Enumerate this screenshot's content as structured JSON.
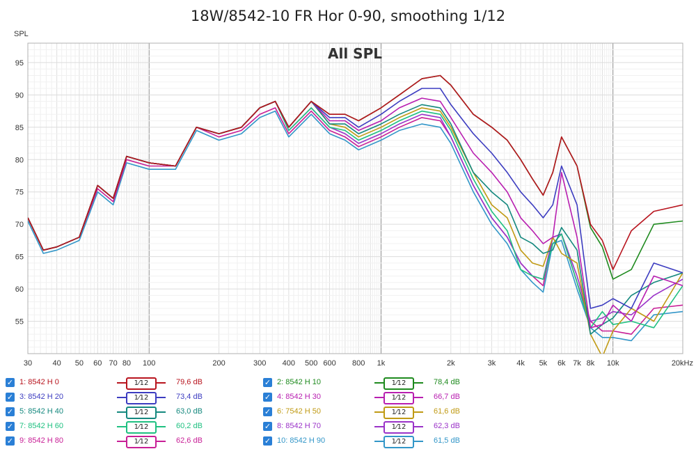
{
  "title": "18W/8542-10 FR Hor 0-90, smoothing 1/12",
  "panel_label": "All SPL",
  "chart_data": {
    "type": "line",
    "title": "18W/8542-10 FR Hor 0-90, smoothing 1/12",
    "ylabel": "SPL",
    "xlabel": "",
    "xscale": "log",
    "xlim": [
      30,
      20000
    ],
    "ylim": [
      50,
      98
    ],
    "grid": true,
    "x_tick_labels": [
      {
        "v": 30,
        "t": "30"
      },
      {
        "v": 40,
        "t": "40"
      },
      {
        "v": 50,
        "t": "50"
      },
      {
        "v": 60,
        "t": "60"
      },
      {
        "v": 70,
        "t": "70"
      },
      {
        "v": 80,
        "t": "80"
      },
      {
        "v": 100,
        "t": "100"
      },
      {
        "v": 200,
        "t": "200"
      },
      {
        "v": 300,
        "t": "300"
      },
      {
        "v": 400,
        "t": "400"
      },
      {
        "v": 500,
        "t": "500"
      },
      {
        "v": 600,
        "t": "600"
      },
      {
        "v": 800,
        "t": "800"
      },
      {
        "v": 1000,
        "t": "1k"
      },
      {
        "v": 2000,
        "t": "2k"
      },
      {
        "v": 3000,
        "t": "3k"
      },
      {
        "v": 4000,
        "t": "4k"
      },
      {
        "v": 5000,
        "t": "5k"
      },
      {
        "v": 6000,
        "t": "6k"
      },
      {
        "v": 7000,
        "t": "7k"
      },
      {
        "v": 8000,
        "t": "8k"
      },
      {
        "v": 10000,
        "t": "10k"
      },
      {
        "v": 20000,
        "t": "20kHz"
      }
    ],
    "y_ticks": [
      55,
      60,
      65,
      70,
      75,
      80,
      85,
      90,
      95
    ],
    "x": [
      30,
      35,
      40,
      50,
      60,
      70,
      80,
      100,
      130,
      160,
      200,
      250,
      300,
      350,
      400,
      500,
      600,
      700,
      800,
      1000,
      1200,
      1500,
      1800,
      2000,
      2500,
      3000,
      3500,
      4000,
      4500,
      5000,
      5500,
      6000,
      7000,
      8000,
      9000,
      10000,
      12000,
      15000,
      20000
    ],
    "base": [
      71,
      66,
      66.5,
      68,
      76,
      74,
      80.5,
      79.5,
      79,
      85,
      84,
      85,
      88,
      89,
      85,
      89,
      87,
      87,
      86,
      88,
      90,
      92.5,
      93,
      91.5,
      87,
      85,
      83,
      80,
      77,
      74.5,
      78,
      83.5,
      79,
      70,
      67.5,
      66.5,
      67,
      70,
      71.5
    ],
    "series": [
      {
        "name": "1: 8542 H 0",
        "color": "#b8141e",
        "offsets": [
          0,
          0,
          0,
          0,
          0,
          0,
          0,
          0,
          0,
          0,
          0,
          0,
          0,
          0,
          0,
          0,
          0,
          0,
          0,
          0,
          0,
          0,
          0,
          0,
          0,
          0,
          0,
          0,
          0,
          0,
          0,
          0,
          0,
          0,
          0,
          -3.5,
          2,
          2,
          1.5
        ]
      },
      {
        "name": "2: 8542 H 10",
        "color": "#1e8a1e",
        "offsets": [
          0,
          0,
          0,
          0,
          0,
          0,
          0,
          0,
          0,
          0,
          0,
          0,
          0,
          0,
          0,
          0,
          0,
          0,
          0,
          0,
          0,
          0,
          0,
          0,
          0,
          0,
          0,
          0,
          0,
          0,
          0,
          0,
          0,
          -0.5,
          -1,
          -5,
          -4,
          0,
          -1
        ]
      },
      {
        "name": "3: 8542 H 20",
        "color": "#3c3cc0",
        "offsets": [
          0,
          0,
          0,
          0,
          0,
          0,
          0,
          0,
          0,
          0,
          0,
          0,
          0,
          0,
          0,
          0,
          -0.5,
          -0.5,
          -1,
          -1,
          -1,
          -1.5,
          -2,
          -3,
          -3,
          -4,
          -5,
          -5,
          -4,
          -3.5,
          -5,
          -4.5,
          -6,
          -13,
          -10,
          -8,
          -10,
          -6,
          -9
        ]
      },
      {
        "name": "4: 8542 H 30",
        "color": "#b81eb0",
        "offsets": [
          0,
          0,
          0,
          0,
          0,
          0,
          0,
          0,
          0,
          0,
          0,
          0,
          0,
          0,
          0,
          0,
          -1,
          -1,
          -1.5,
          -2,
          -2,
          -3,
          -4,
          -5,
          -6,
          -7,
          -8,
          -9,
          -8,
          -7.5,
          -10,
          -5.5,
          -11,
          -16,
          -13,
          -9,
          -12,
          -8,
          -11
        ]
      },
      {
        "name": "5: 8542 H 40",
        "color": "#14887e",
        "offsets": [
          0,
          0,
          0,
          0,
          0,
          0,
          0,
          0,
          0,
          0,
          0,
          0,
          0,
          0,
          0,
          0,
          -1.5,
          -1.5,
          -2,
          -2.5,
          -3,
          -4,
          -5,
          -6,
          -9,
          -10,
          -10,
          -12,
          -10,
          -9,
          -12,
          -14,
          -13,
          -17,
          -13,
          -11,
          -8,
          -9,
          -9
        ]
      },
      {
        "name": "6: 7542 H 50",
        "color": "#c09a14",
        "offsets": [
          0,
          0,
          0,
          0,
          0,
          0,
          0,
          0,
          0,
          0,
          0,
          0,
          0,
          0,
          0,
          0,
          -1.5,
          -2,
          -2.5,
          -3,
          -3.5,
          -4.5,
          -5.5,
          -6.5,
          -9,
          -12,
          -12,
          -14,
          -13,
          -11,
          -10,
          -18,
          -15,
          -17,
          -18,
          -13,
          -10,
          -15,
          -9
        ]
      },
      {
        "name": "7: 8542 H 60",
        "color": "#1ec080",
        "offsets": [
          0,
          0,
          0,
          0,
          0,
          0,
          0,
          0,
          0,
          0,
          0,
          0,
          0,
          0,
          -0.5,
          -1,
          -2,
          -2.5,
          -3,
          -3.5,
          -4,
          -5,
          -6,
          -7,
          -10,
          -13,
          -14,
          -17,
          -15,
          -13,
          -11,
          -15,
          -18,
          -16,
          -11,
          -12,
          -12,
          -16,
          -11
        ]
      },
      {
        "name": "8: 8542 H 70",
        "color": "#9a32c8",
        "offsets": [
          0,
          0,
          0,
          0,
          0,
          0,
          0,
          0,
          0,
          0,
          0,
          0,
          0,
          0,
          -0.5,
          -1,
          -2,
          -3,
          -3.5,
          -4,
          -4.5,
          -5.5,
          -6.5,
          -8,
          -11,
          -14,
          -15,
          -16,
          -15,
          -13,
          -10,
          -15,
          -17,
          -15,
          -12,
          -10,
          -11,
          -11,
          -10
        ]
      },
      {
        "name": "9: 8542 H 80",
        "color": "#c81e96",
        "offsets": [
          0,
          0,
          0,
          0,
          -0.5,
          -0.5,
          -0.5,
          -0.5,
          0,
          0,
          -0.5,
          -0.5,
          -1,
          -1,
          -1,
          -1.5,
          -2.5,
          -3.5,
          -4,
          -4.5,
          -5,
          -6,
          -7,
          -8,
          -11,
          -14,
          -15,
          -16,
          -15,
          -14,
          -10,
          -15,
          -18,
          -15,
          -14,
          -13,
          -14,
          -13,
          -14
        ]
      },
      {
        "name": "10: 8542 H 90",
        "color": "#3296c8",
        "offsets": [
          -0.5,
          -0.5,
          -0.5,
          -0.5,
          -1,
          -1,
          -1,
          -1,
          -0.5,
          -0.5,
          -1,
          -1,
          -1.5,
          -1.5,
          -1.5,
          -2,
          -3,
          -4,
          -4.5,
          -5,
          -5.5,
          -7,
          -8,
          -9,
          -12,
          -15,
          -16,
          -17,
          -16,
          -15,
          -11,
          -16,
          -19,
          -16,
          -15,
          -14,
          -15,
          -14,
          -15
        ]
      }
    ]
  },
  "legend": {
    "smoothing_label": "1⁄12",
    "items": [
      {
        "label": "1: 8542 H 0",
        "value": "79,6 dB",
        "color": "#b8141e"
      },
      {
        "label": "2: 8542 H 10",
        "value": "78,4 dB",
        "color": "#1e8a1e"
      },
      {
        "label": "3: 8542 H 20",
        "value": "73,4 dB",
        "color": "#3c3cc0"
      },
      {
        "label": "4: 8542 H 30",
        "value": "66,7 dB",
        "color": "#b81eb0"
      },
      {
        "label": "5: 8542 H 40",
        "value": "63,0 dB",
        "color": "#14887e"
      },
      {
        "label": "6: 7542 H 50",
        "value": "61,6 dB",
        "color": "#c09a14"
      },
      {
        "label": "7: 8542 H 60",
        "value": "60,2 dB",
        "color": "#1ec080"
      },
      {
        "label": "8: 8542 H 70",
        "value": "62,3 dB",
        "color": "#9a32c8"
      },
      {
        "label": "9: 8542 H 80",
        "value": "62,6 dB",
        "color": "#c81e96"
      },
      {
        "label": "10: 8542 H 90",
        "value": "61,5 dB",
        "color": "#3296c8"
      }
    ]
  }
}
